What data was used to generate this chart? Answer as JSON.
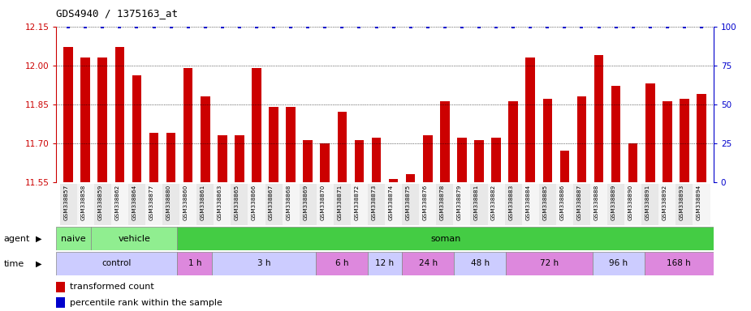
{
  "title": "GDS4940 / 1375163_at",
  "categories": [
    "GSM338857",
    "GSM338858",
    "GSM338859",
    "GSM338862",
    "GSM338864",
    "GSM338877",
    "GSM338880",
    "GSM338860",
    "GSM338861",
    "GSM338863",
    "GSM338865",
    "GSM338866",
    "GSM338867",
    "GSM338868",
    "GSM338869",
    "GSM338870",
    "GSM338871",
    "GSM338872",
    "GSM338873",
    "GSM338874",
    "GSM338875",
    "GSM338876",
    "GSM338878",
    "GSM338879",
    "GSM338881",
    "GSM338882",
    "GSM338883",
    "GSM338884",
    "GSM338885",
    "GSM338886",
    "GSM338887",
    "GSM338888",
    "GSM338889",
    "GSM338890",
    "GSM338891",
    "GSM338892",
    "GSM338893",
    "GSM338894"
  ],
  "bar_values": [
    12.07,
    12.03,
    12.03,
    12.07,
    11.96,
    11.74,
    11.74,
    11.99,
    11.88,
    11.73,
    11.73,
    11.99,
    11.84,
    11.84,
    11.71,
    11.7,
    11.82,
    11.71,
    11.72,
    11.56,
    11.58,
    11.73,
    11.86,
    11.72,
    11.71,
    11.72,
    11.86,
    12.03,
    11.87,
    11.67,
    11.88,
    12.04,
    11.92,
    11.7,
    11.93,
    11.86,
    11.87,
    11.89
  ],
  "percentile_values": [
    100,
    100,
    100,
    100,
    100,
    100,
    100,
    100,
    100,
    100,
    100,
    100,
    100,
    100,
    100,
    100,
    100,
    100,
    100,
    100,
    100,
    100,
    100,
    100,
    100,
    100,
    100,
    100,
    100,
    100,
    100,
    100,
    100,
    100,
    100,
    100,
    100,
    100
  ],
  "ylim_left": [
    11.55,
    12.15
  ],
  "ylim_right": [
    0,
    100
  ],
  "yticks_left": [
    11.55,
    11.7,
    11.85,
    12.0,
    12.15
  ],
  "yticks_right": [
    0,
    25,
    50,
    75,
    100
  ],
  "bar_color": "#cc0000",
  "percentile_color": "#0000cc",
  "background_color": "#ffffff",
  "agent_groups": [
    {
      "label": "naive",
      "start": 0,
      "end": 2,
      "color": "#90ee90"
    },
    {
      "label": "vehicle",
      "start": 2,
      "end": 7,
      "color": "#90ee90"
    },
    {
      "label": "soman",
      "start": 7,
      "end": 38,
      "color": "#44cc44"
    }
  ],
  "time_groups": [
    {
      "label": "control",
      "start": 0,
      "end": 7,
      "color": "#ccccff"
    },
    {
      "label": "1 h",
      "start": 7,
      "end": 9,
      "color": "#dd88dd"
    },
    {
      "label": "3 h",
      "start": 9,
      "end": 15,
      "color": "#ccccff"
    },
    {
      "label": "6 h",
      "start": 15,
      "end": 18,
      "color": "#dd88dd"
    },
    {
      "label": "12 h",
      "start": 18,
      "end": 20,
      "color": "#ccccff"
    },
    {
      "label": "24 h",
      "start": 20,
      "end": 23,
      "color": "#dd88dd"
    },
    {
      "label": "48 h",
      "start": 23,
      "end": 26,
      "color": "#ccccff"
    },
    {
      "label": "72 h",
      "start": 26,
      "end": 31,
      "color": "#dd88dd"
    },
    {
      "label": "96 h",
      "start": 31,
      "end": 34,
      "color": "#ccccff"
    },
    {
      "label": "168 h",
      "start": 34,
      "end": 38,
      "color": "#dd88dd"
    }
  ],
  "legend_items": [
    {
      "label": "transformed count",
      "color": "#cc0000"
    },
    {
      "label": "percentile rank within the sample",
      "color": "#0000cc"
    }
  ],
  "bar_color_red": "#cc0000",
  "percentile_color_blue": "#0000cc"
}
